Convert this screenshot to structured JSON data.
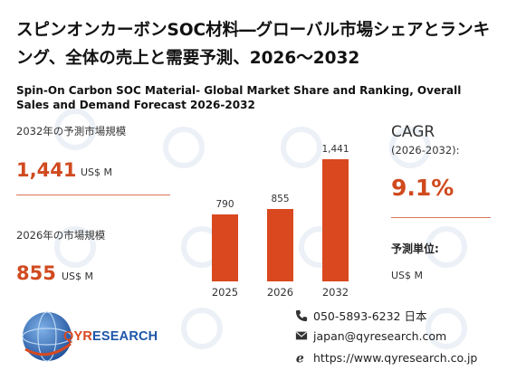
{
  "title_jp": "スピンオンカーボンSOC材料―グローバル市場シェアとランキング、全体の売上と需要予測、2026～2032",
  "title_en": "Spin-On Carbon SOC Material- Global Market Share and Ranking, Overall Sales and Demand Forecast 2026-2032",
  "left": {
    "label_2032": "2032年の予測市場規模",
    "value_2032": "1,441",
    "unit_2032": "US$ M",
    "label_2026": "2026年の市場規模",
    "value_2026": "855",
    "unit_2026": "US$ M"
  },
  "chart_data": {
    "type": "bar",
    "categories": [
      "2025",
      "2026",
      "2032"
    ],
    "values": [
      790,
      855,
      1441
    ],
    "value_labels": [
      "790",
      "855",
      "1,441"
    ],
    "bar_color": "#d9481f"
  },
  "right": {
    "cagr_title": "CAGR",
    "cagr_period": "(2026-2032):",
    "cagr_value": "9.1%",
    "unit_title": "予測単位:",
    "unit_value": "US$ M"
  },
  "logo": {
    "brand_main": "QYR",
    "brand_rest": "ESEARCH"
  },
  "contact": {
    "phone": "050-5893-6232 日本",
    "email": "japan@qyresearch.com",
    "website": "https://www.qyresearch.co.jp"
  },
  "colors": {
    "accent": "#d04a1f",
    "brand_blue": "#1e56a8"
  }
}
